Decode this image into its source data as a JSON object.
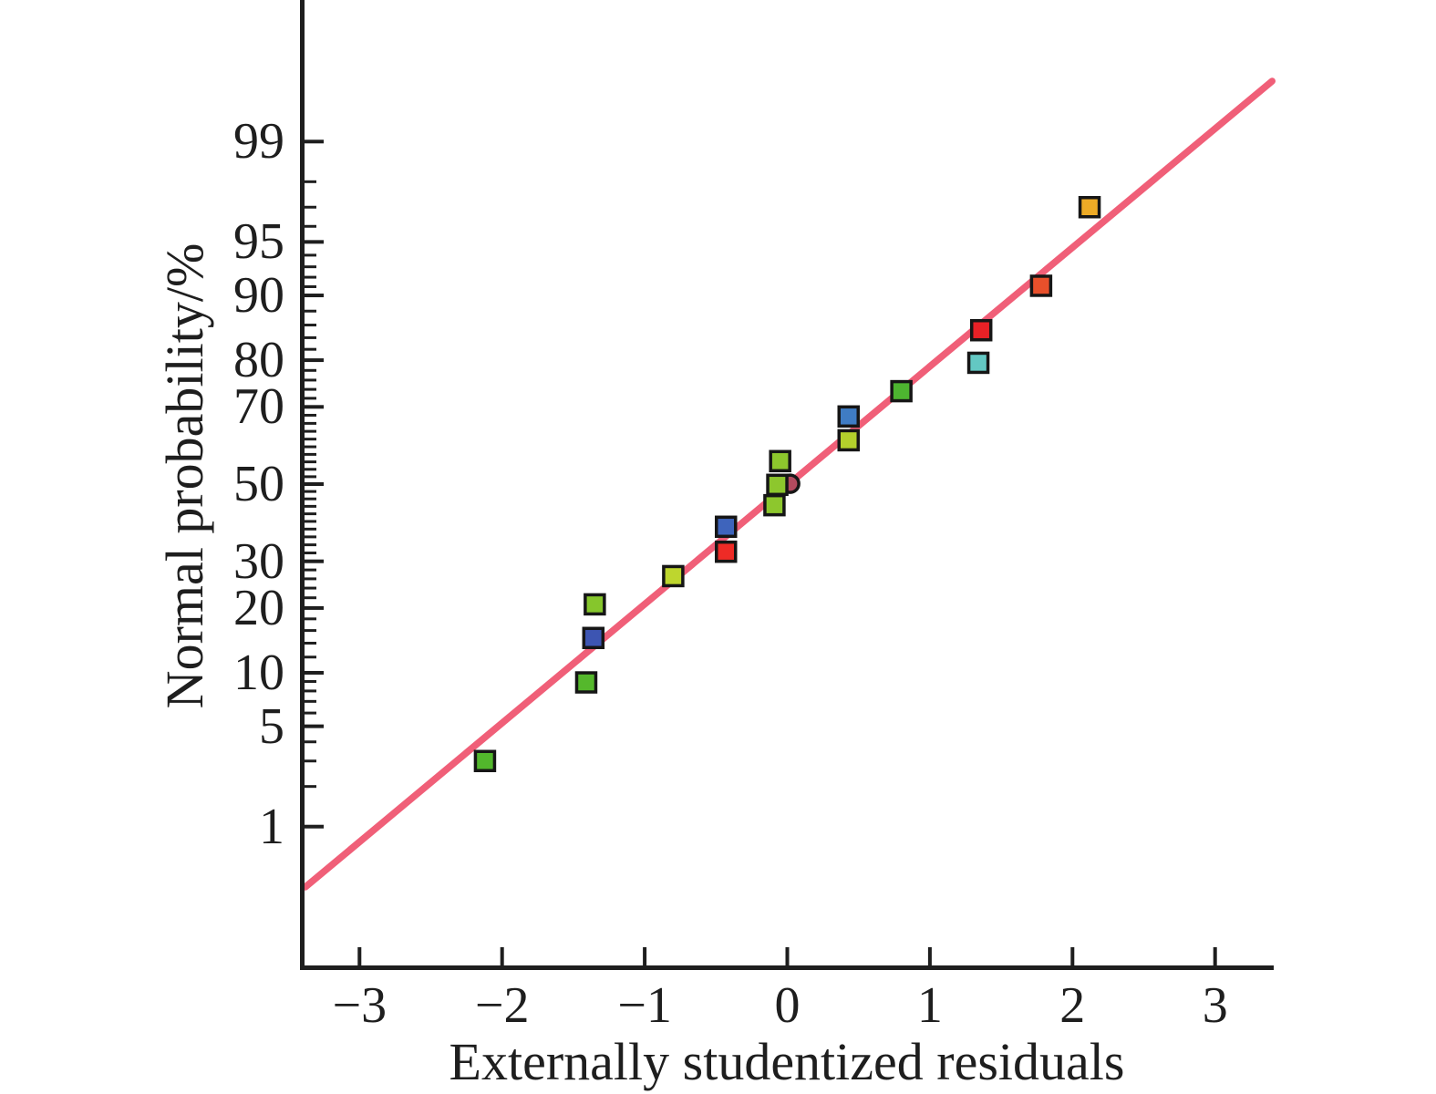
{
  "figure_type": "normal probability plot",
  "chart_data": {
    "type": "scatter",
    "title": "",
    "xlabel": "Externally studentized residuals",
    "ylabel": "Normal probability/%",
    "grid": false,
    "legend": "none",
    "x_axis": {
      "min": -3.41,
      "max": 3.41,
      "ticks": [
        {
          "value": -3,
          "label": "−3"
        },
        {
          "value": -2,
          "label": "−2"
        },
        {
          "value": -1,
          "label": "−1"
        },
        {
          "value": 0,
          "label": "0"
        },
        {
          "value": 1,
          "label": "1"
        },
        {
          "value": 2,
          "label": "2"
        },
        {
          "value": 3,
          "label": "3"
        }
      ]
    },
    "y_axis": {
      "scale": "normal-probability-percent",
      "major_ticks": [
        {
          "value": 1,
          "label": "1"
        },
        {
          "value": 5,
          "label": "5"
        },
        {
          "value": 10,
          "label": "10"
        },
        {
          "value": 20,
          "label": "20"
        },
        {
          "value": 30,
          "label": "30"
        },
        {
          "value": 50,
          "label": "50"
        },
        {
          "value": 70,
          "label": "70"
        },
        {
          "value": 80,
          "label": "80"
        },
        {
          "value": 90,
          "label": "90"
        },
        {
          "value": 95,
          "label": "95"
        },
        {
          "value": 99,
          "label": "99"
        }
      ],
      "minor_ticks": [
        2,
        3,
        4,
        6,
        7,
        8,
        9,
        12,
        14,
        16,
        18,
        22,
        24,
        26,
        28,
        32,
        34,
        36,
        38,
        40,
        42,
        44,
        46,
        48,
        52,
        54,
        56,
        58,
        60,
        62,
        64,
        66,
        68,
        72,
        74,
        76,
        78,
        82,
        84,
        86,
        88,
        91,
        92,
        93,
        94,
        96,
        97,
        98
      ]
    },
    "fit_line": {
      "color": "#F05F78",
      "x_start": -3.38,
      "p_start": 0.31,
      "x_end": 3.4,
      "p_end": 99.69
    },
    "points": [
      {
        "x": -2.12,
        "p": 3.0,
        "color": "#52B72C",
        "shape": "square"
      },
      {
        "x": -1.41,
        "p": 8.9,
        "color": "#55B82C",
        "shape": "square"
      },
      {
        "x": -1.36,
        "p": 14.8,
        "color": "#3D55B2",
        "shape": "square"
      },
      {
        "x": -1.35,
        "p": 20.7,
        "color": "#86C62C",
        "shape": "square"
      },
      {
        "x": -0.8,
        "p": 26.6,
        "color": "#BED62E",
        "shape": "square"
      },
      {
        "x": -0.43,
        "p": 32.3,
        "color": "#EE2B26",
        "shape": "square"
      },
      {
        "x": -0.43,
        "p": 38.6,
        "color": "#3E64BC",
        "shape": "square"
      },
      {
        "x": -0.09,
        "p": 44.3,
        "color": "#8DC72D",
        "shape": "square"
      },
      {
        "x": -0.07,
        "p": 49.8,
        "color": "#8DC72D",
        "shape": "square"
      },
      {
        "x": 0.02,
        "p": 50.1,
        "color": "#B24A5E",
        "shape": "circle"
      },
      {
        "x": -0.05,
        "p": 56.2,
        "color": "#8DC72D",
        "shape": "square"
      },
      {
        "x": 0.43,
        "p": 61.7,
        "color": "#B3D02C",
        "shape": "square"
      },
      {
        "x": 0.43,
        "p": 67.7,
        "color": "#3F7CC4",
        "shape": "square"
      },
      {
        "x": 0.8,
        "p": 73.6,
        "color": "#4DB530",
        "shape": "square"
      },
      {
        "x": 1.34,
        "p": 79.5,
        "color": "#63C8C3",
        "shape": "square"
      },
      {
        "x": 1.36,
        "p": 85.2,
        "color": "#E82126",
        "shape": "square"
      },
      {
        "x": 1.78,
        "p": 91.1,
        "color": "#E8502B",
        "shape": "square"
      },
      {
        "x": 2.12,
        "p": 97.0,
        "color": "#EDAB26",
        "shape": "square"
      }
    ]
  },
  "colors": {
    "axis": "#1e1e1e",
    "background": "#ffffff",
    "fit_line": "#F05F78",
    "marker_border": "#161616"
  }
}
